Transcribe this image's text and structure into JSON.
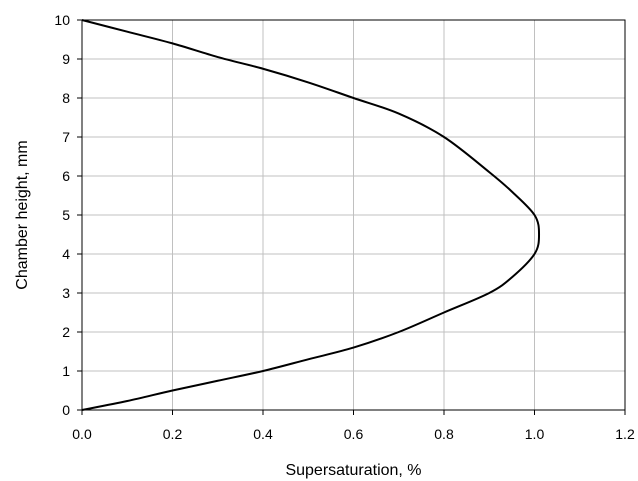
{
  "chart_data": {
    "type": "line",
    "title": "",
    "xlabel": "Supersaturation,  %",
    "ylabel": "Chamber height,  mm",
    "xlim": [
      0,
      1.2
    ],
    "ylim": [
      0,
      10
    ],
    "x_ticks": [
      "0.0",
      "0.2",
      "0.4",
      "0.6",
      "0.8",
      "1.0",
      "1.2"
    ],
    "y_ticks": [
      "0",
      "1",
      "2",
      "3",
      "4",
      "5",
      "6",
      "7",
      "8",
      "9",
      "10"
    ],
    "grid": true,
    "legend": "none",
    "series": [
      {
        "color": "#000000",
        "x": [
          0.0,
          0.1,
          0.2,
          0.3,
          0.4,
          0.5,
          0.6,
          0.7,
          0.8,
          0.9,
          0.95,
          1.0,
          1.01,
          1.0,
          0.95,
          0.9,
          0.8,
          0.7,
          0.6,
          0.5,
          0.4,
          0.3,
          0.2,
          0.1,
          0.0
        ],
        "y": [
          0.0,
          0.23,
          0.5,
          0.75,
          1.0,
          1.3,
          1.6,
          2.0,
          2.5,
          3.0,
          3.4,
          4.0,
          4.5,
          5.0,
          5.6,
          6.1,
          7.0,
          7.6,
          8.0,
          8.4,
          8.75,
          9.05,
          9.4,
          9.7,
          10.0
        ]
      }
    ]
  }
}
